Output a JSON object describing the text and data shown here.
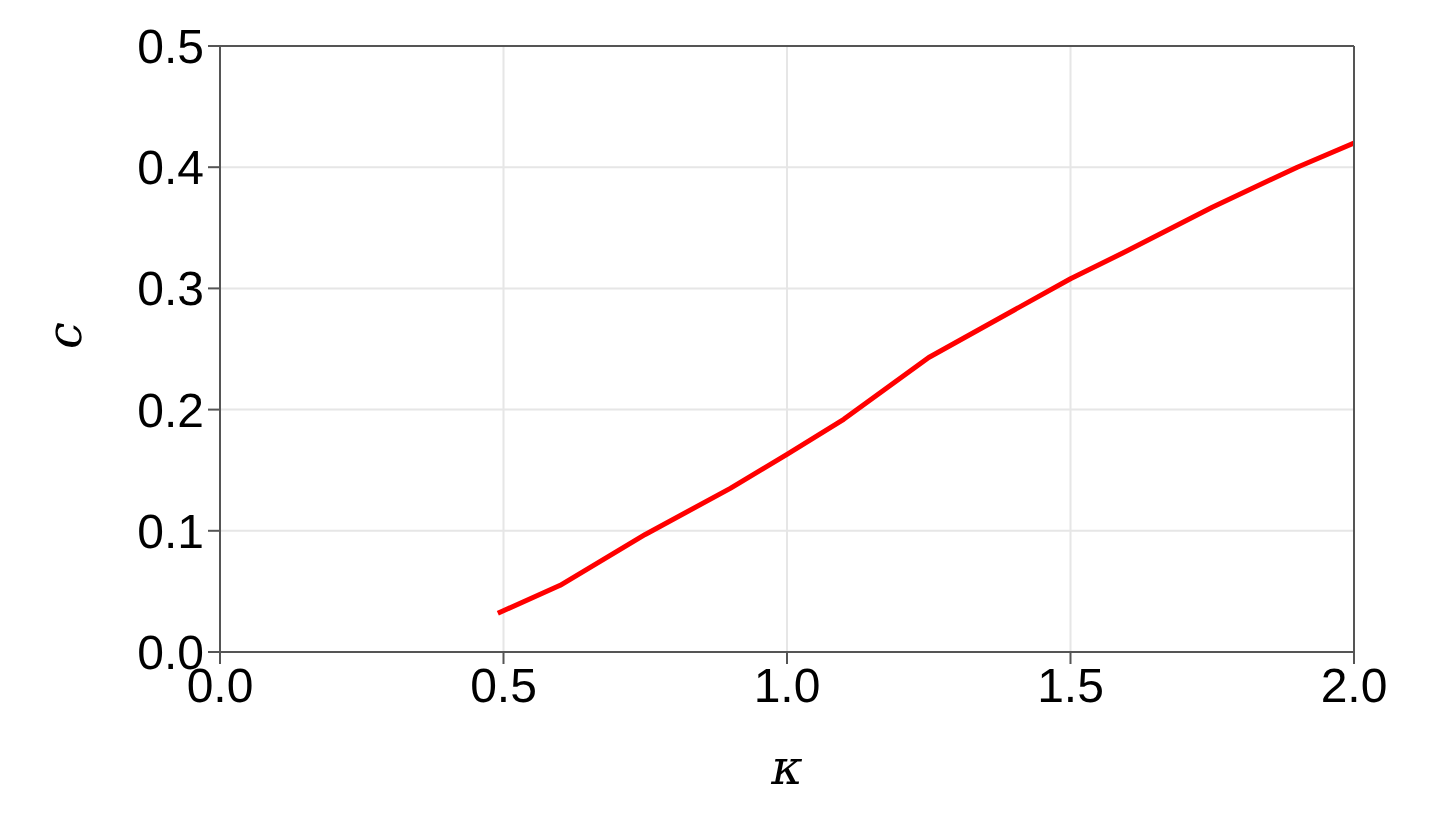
{
  "chart_data": {
    "type": "line",
    "xlabel": "κ",
    "ylabel": "c",
    "x": [
      0.49,
      0.6,
      0.75,
      0.9,
      1.0,
      1.1,
      1.25,
      1.4,
      1.5,
      1.6,
      1.75,
      1.9,
      2.0
    ],
    "series": [
      {
        "color": "#ff0000",
        "values": [
          0.032,
          0.055,
          0.097,
          0.135,
          0.163,
          0.192,
          0.243,
          0.282,
          0.308,
          0.331,
          0.367,
          0.4,
          0.42
        ]
      }
    ],
    "xlim": [
      0,
      2
    ],
    "ylim": [
      0,
      0.5
    ],
    "xticks": [
      {
        "value": 0,
        "label": "0.0"
      },
      {
        "value": 0.5,
        "label": "0.5"
      },
      {
        "value": 1,
        "label": "1.0"
      },
      {
        "value": 1.5,
        "label": "1.5"
      },
      {
        "value": 2,
        "label": "2.0"
      }
    ],
    "yticks": [
      {
        "value": 0,
        "label": "0.0"
      },
      {
        "value": 0.1,
        "label": "0.1"
      },
      {
        "value": 0.2,
        "label": "0.2"
      },
      {
        "value": 0.3,
        "label": "0.3"
      },
      {
        "value": 0.4,
        "label": "0.4"
      },
      {
        "value": 0.5,
        "label": "0.5"
      }
    ],
    "grid": true,
    "marker": "none",
    "line_style": "solid"
  }
}
